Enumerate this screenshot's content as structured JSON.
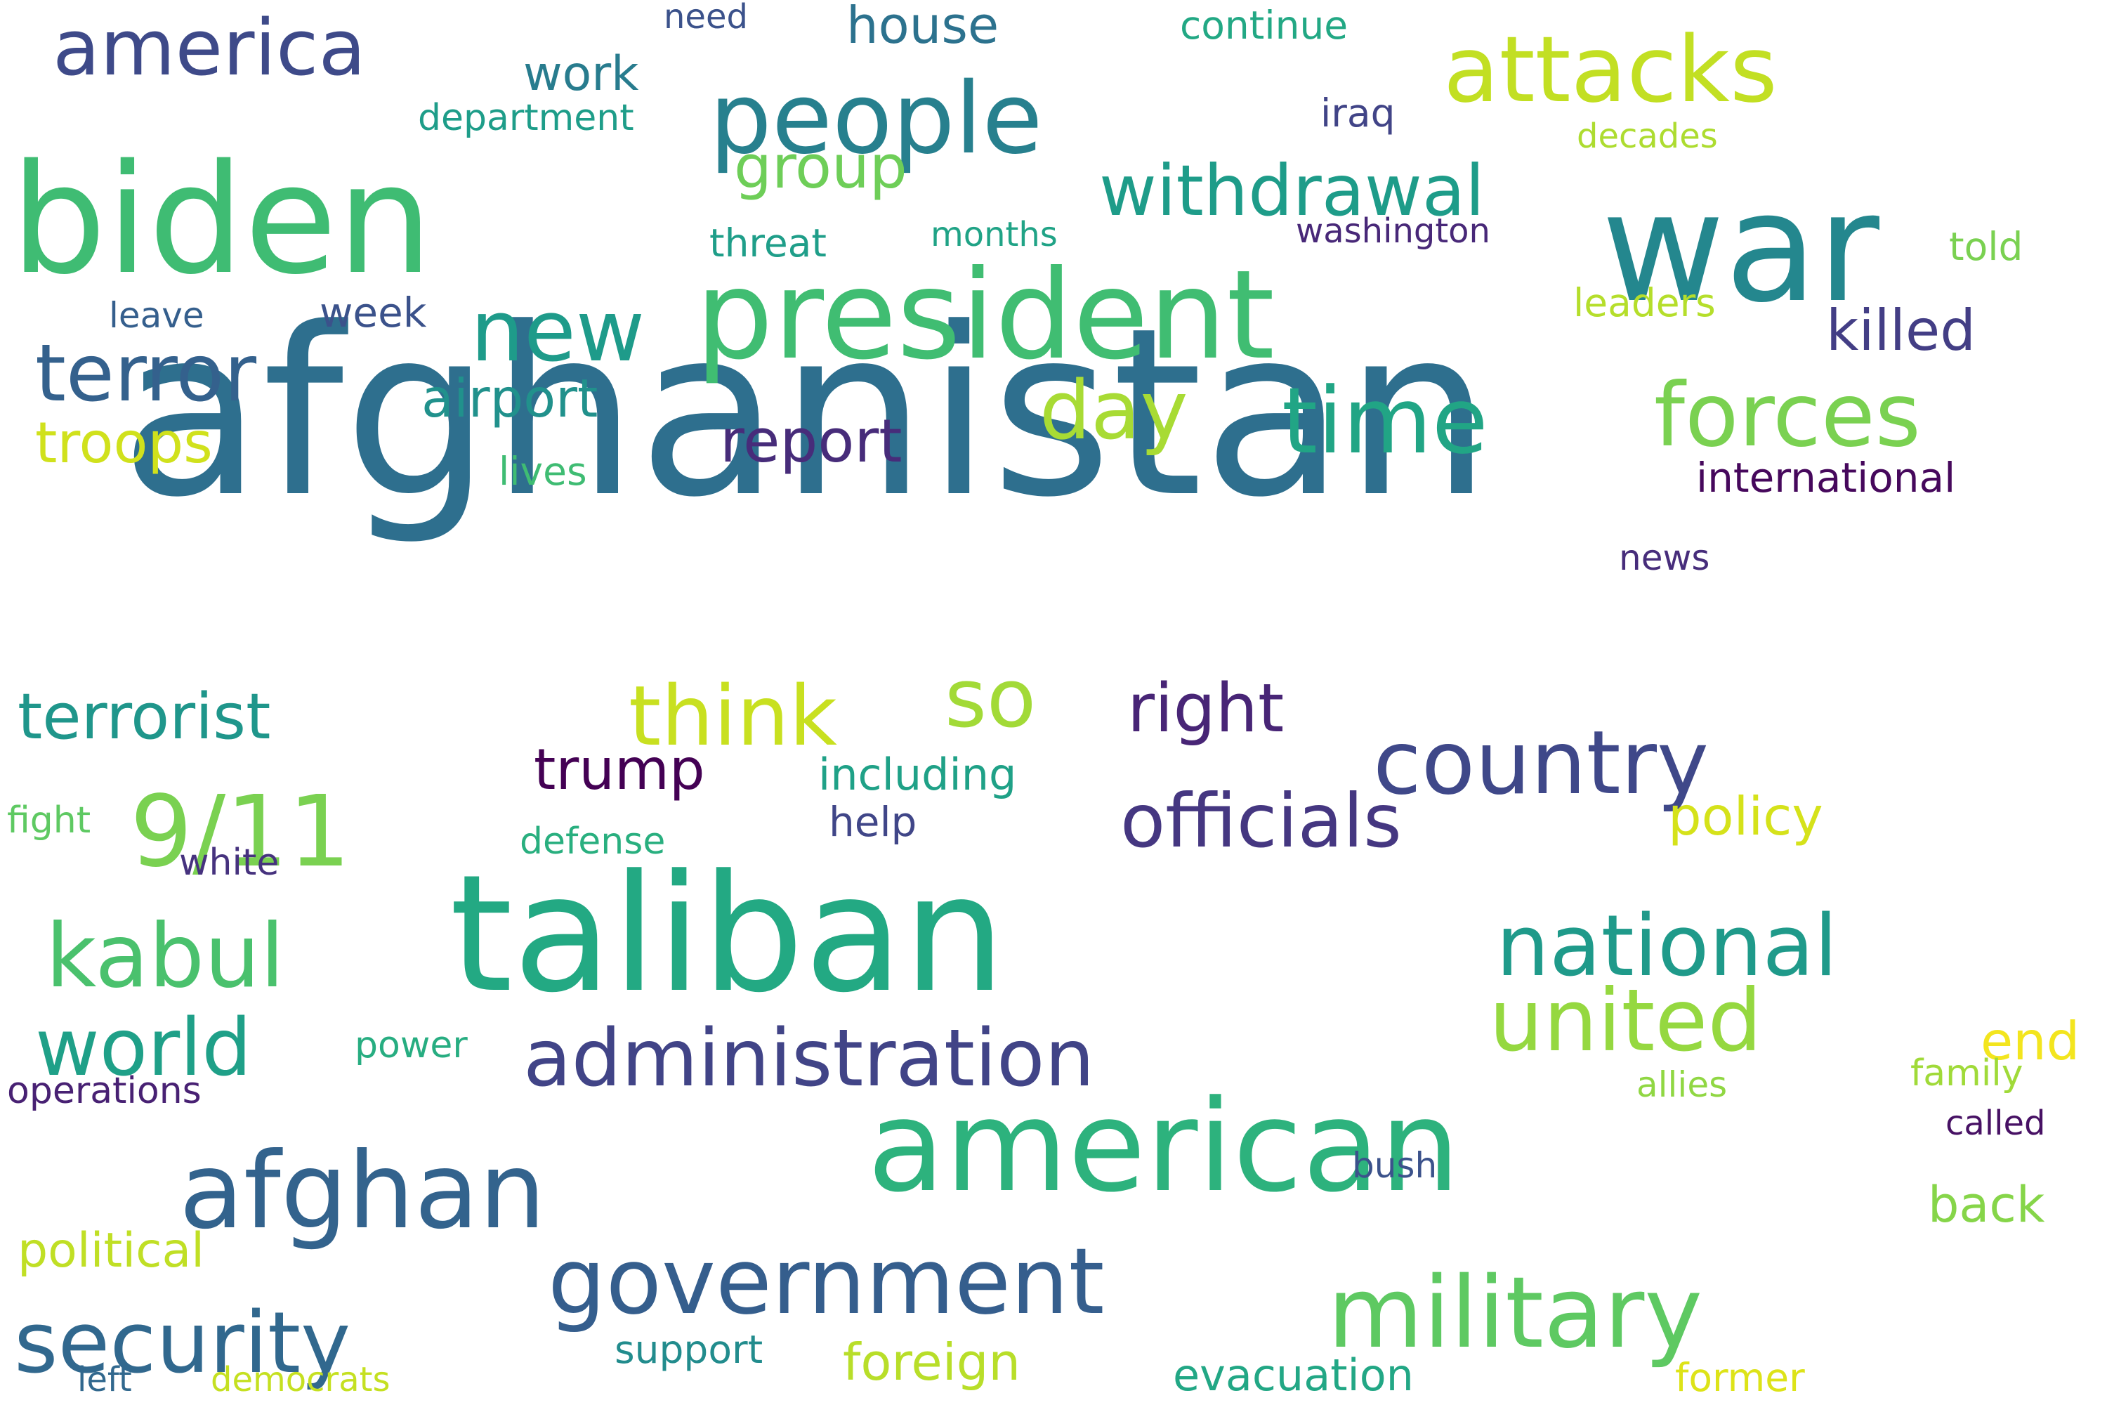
{
  "words": [
    {
      "text": "afghanistan",
      "color": "#2e6f8e"
    },
    {
      "text": "taliban",
      "color": "#23a983"
    },
    {
      "text": "biden",
      "color": "#3fbc73"
    },
    {
      "text": "american",
      "color": "#2db27d"
    },
    {
      "text": "war",
      "color": "#24878e"
    },
    {
      "text": "president",
      "color": "#40bd72"
    },
    {
      "text": "people",
      "color": "#27808e"
    },
    {
      "text": "country",
      "color": "#3f4889"
    },
    {
      "text": "attacks",
      "color": "#c2df23"
    },
    {
      "text": "afghan",
      "color": "#33638d"
    },
    {
      "text": "government",
      "color": "#355e8d"
    },
    {
      "text": "military",
      "color": "#5ec962"
    },
    {
      "text": "national",
      "color": "#1f9a8a"
    },
    {
      "text": "forces",
      "color": "#7ad151"
    },
    {
      "text": "administration",
      "color": "#414487"
    },
    {
      "text": "united",
      "color": "#95d840"
    },
    {
      "text": "security",
      "color": "#31688e"
    },
    {
      "text": "new",
      "color": "#1e9b8a"
    },
    {
      "text": "time",
      "color": "#21a585"
    },
    {
      "text": "america",
      "color": "#3e4a89"
    },
    {
      "text": "terror",
      "color": "#34618d"
    },
    {
      "text": "9/11",
      "color": "#7ad151"
    },
    {
      "text": "kabul",
      "color": "#4ac16d"
    },
    {
      "text": "world",
      "color": "#1fa088"
    },
    {
      "text": "so",
      "color": "#a2da37"
    },
    {
      "text": "think",
      "color": "#c8e020"
    },
    {
      "text": "officials",
      "color": "#453781"
    },
    {
      "text": "withdrawal",
      "color": "#1e9c89"
    },
    {
      "text": "day",
      "color": "#a8db34"
    },
    {
      "text": "terrorist",
      "color": "#1f968b"
    },
    {
      "text": "right",
      "color": "#482576"
    },
    {
      "text": "trump",
      "color": "#440154"
    },
    {
      "text": "report",
      "color": "#472c7a"
    },
    {
      "text": "killed",
      "color": "#433e85"
    },
    {
      "text": "group",
      "color": "#6ece58"
    },
    {
      "text": "troops",
      "color": "#d0e11c"
    },
    {
      "text": "policy",
      "color": "#d5e21a"
    },
    {
      "text": "end",
      "color": "#f3e51e"
    },
    {
      "text": "airport",
      "color": "#21918c"
    },
    {
      "text": "foreign",
      "color": "#b8de29"
    },
    {
      "text": "back",
      "color": "#86d549"
    },
    {
      "text": "political",
      "color": "#c0df25"
    },
    {
      "text": "house",
      "color": "#2c728e"
    },
    {
      "text": "work",
      "color": "#287c8e"
    },
    {
      "text": "evacuation",
      "color": "#22a785"
    },
    {
      "text": "including",
      "color": "#1fa187"
    },
    {
      "text": "international",
      "color": "#46085c"
    },
    {
      "text": "week",
      "color": "#3b528b"
    },
    {
      "text": "continue",
      "color": "#22a884"
    },
    {
      "text": "defense",
      "color": "#29af7f"
    },
    {
      "text": "department",
      "color": "#1e9d89"
    },
    {
      "text": "threat",
      "color": "#1f9e89"
    },
    {
      "text": "months",
      "color": "#20a386"
    },
    {
      "text": "lives",
      "color": "#3fbc73"
    },
    {
      "text": "support",
      "color": "#228c8d"
    },
    {
      "text": "former",
      "color": "#dde318"
    },
    {
      "text": "operations",
      "color": "#482173"
    },
    {
      "text": "power",
      "color": "#27ad81"
    },
    {
      "text": "allies",
      "color": "#90d743"
    },
    {
      "text": "family",
      "color": "#a0da39"
    },
    {
      "text": "told",
      "color": "#7ad151"
    },
    {
      "text": "leaders",
      "color": "#b5de2b"
    },
    {
      "text": "decades",
      "color": "#addc30"
    },
    {
      "text": "need",
      "color": "#3b528b"
    },
    {
      "text": "iraq",
      "color": "#414487"
    },
    {
      "text": "washington",
      "color": "#482878"
    },
    {
      "text": "news",
      "color": "#472d7b"
    },
    {
      "text": "called",
      "color": "#471164"
    },
    {
      "text": "bush",
      "color": "#3b528b"
    },
    {
      "text": "help",
      "color": "#404688"
    },
    {
      "text": "white",
      "color": "#46327e"
    },
    {
      "text": "leave",
      "color": "#355f8d"
    },
    {
      "text": "fight",
      "color": "#5ec962"
    },
    {
      "text": "democrats",
      "color": "#c5e021"
    },
    {
      "text": "left",
      "color": "#31688e"
    }
  ]
}
